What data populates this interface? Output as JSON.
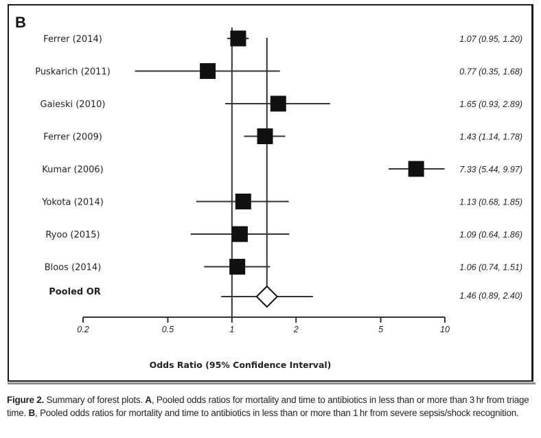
{
  "chart_data": {
    "type": "forest",
    "panel_label": "B",
    "xlabel": "Odds Ratio (95% Confidence Interval)",
    "xscale": "log",
    "xlim": [
      0.2,
      10
    ],
    "xticks": [
      0.2,
      0.5,
      1,
      2,
      5,
      10
    ],
    "xtick_labels": [
      "0.2",
      "0.5",
      "1",
      "2",
      "5",
      "10"
    ],
    "reference_lines": [
      1,
      1.46
    ],
    "studies": [
      {
        "name": "Ferrer (2014)",
        "or": 1.07,
        "lo": 0.95,
        "hi": 1.2,
        "label": "1.07 (0.95, 1.20)"
      },
      {
        "name": "Puskarich (2011)",
        "or": 0.77,
        "lo": 0.35,
        "hi": 1.68,
        "label": "0.77 (0.35, 1.68)"
      },
      {
        "name": "Gaieski (2010)",
        "or": 1.65,
        "lo": 0.93,
        "hi": 2.89,
        "label": "1.65 (0.93, 2.89)"
      },
      {
        "name": "Ferrer (2009)",
        "or": 1.43,
        "lo": 1.14,
        "hi": 1.78,
        "label": "1.43 (1.14, 1.78)"
      },
      {
        "name": "Kumar (2006)",
        "or": 7.33,
        "lo": 5.44,
        "hi": 9.97,
        "label": "7.33 (5.44, 9.97)"
      },
      {
        "name": "Yokota (2014)",
        "or": 1.13,
        "lo": 0.68,
        "hi": 1.85,
        "label": "1.13 (0.68, 1.85)"
      },
      {
        "name": "Ryoo (2015)",
        "or": 1.09,
        "lo": 0.64,
        "hi": 1.86,
        "label": "1.09 (0.64, 1.86)"
      },
      {
        "name": "Bloos (2014)",
        "or": 1.06,
        "lo": 0.74,
        "hi": 1.51,
        "label": "1.06 (0.74, 1.51)"
      }
    ],
    "pooled": {
      "name": "Pooled OR",
      "or": 1.46,
      "lo": 0.89,
      "hi": 2.4,
      "label": "1.46 (0.89, 2.40)"
    }
  },
  "caption": {
    "figure_label": "Figure 2.",
    "text_1": " Summary of forest plots. ",
    "a_label": "A",
    "text_2": ", Pooled odds ratios for mortality and time to antibiotics in less than or more than 3 hr from triage time. ",
    "b_label": "B",
    "text_3": ", Pooled odds ratios for mortality and time to antibiotics in less than or more than 1 hr from severe sepsis/shock recognition."
  },
  "colors": {
    "ink": "#111111",
    "line": "#333333"
  }
}
